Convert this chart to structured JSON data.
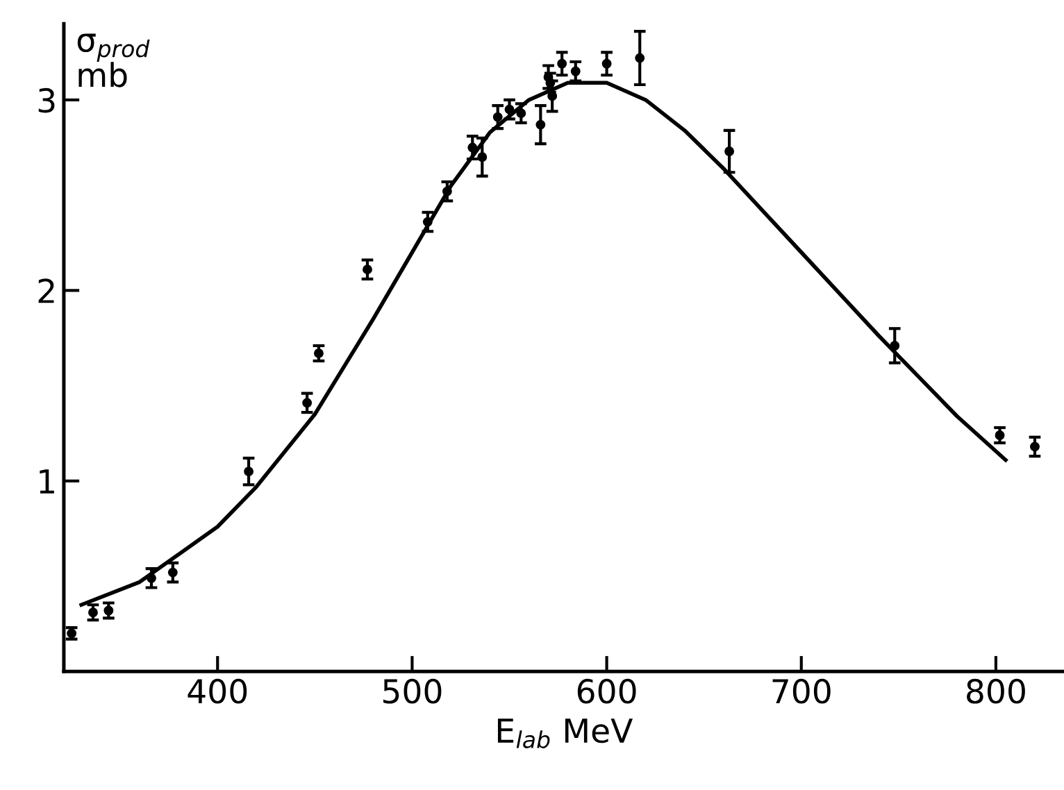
{
  "chart_data": {
    "type": "scatter",
    "xlabel": "E$_{lab}$ MeV",
    "ylabel": "σ$_{prod}$\nmb",
    "xlim": [
      321,
      835
    ],
    "ylim": [
      0,
      3.4
    ],
    "xticks": [
      400,
      500,
      600,
      700,
      800
    ],
    "yticks": [
      1,
      2,
      3
    ],
    "grid": false,
    "series": [
      {
        "marker": "circle",
        "color": "#000000",
        "x": [
          325,
          336,
          344,
          366,
          377,
          416,
          446,
          452,
          477,
          508,
          518,
          531,
          536,
          544,
          550,
          556,
          566,
          570,
          572,
          571,
          577,
          584,
          600,
          617,
          663,
          748,
          802,
          820
        ],
        "values": [
          0.2,
          0.31,
          0.32,
          0.49,
          0.52,
          1.05,
          1.41,
          1.67,
          2.11,
          2.36,
          2.52,
          2.75,
          2.7,
          2.91,
          2.95,
          2.93,
          2.87,
          3.12,
          3.02,
          3.09,
          3.19,
          3.15,
          3.19,
          3.22,
          2.73,
          1.71,
          1.24,
          1.18
        ],
        "errors": [
          0.03,
          0.04,
          0.04,
          0.05,
          0.05,
          0.07,
          0.05,
          0.04,
          0.05,
          0.05,
          0.05,
          0.06,
          0.1,
          0.06,
          0.05,
          0.05,
          0.1,
          0.06,
          0.08,
          0.05,
          0.06,
          0.05,
          0.06,
          0.14,
          0.11,
          0.09,
          0.04,
          0.05
        ]
      },
      {
        "type": "line",
        "marker": "none",
        "color": "#000000",
        "line_style": "solid",
        "x": [
          330,
          360,
          400,
          420,
          450,
          480,
          500,
          520,
          540,
          560,
          580,
          600,
          620,
          640,
          660,
          680,
          700,
          720,
          740,
          760,
          780,
          805
        ],
        "values": [
          0.35,
          0.47,
          0.76,
          0.97,
          1.35,
          1.85,
          2.2,
          2.55,
          2.83,
          3.0,
          3.09,
          3.09,
          3.0,
          2.84,
          2.64,
          2.42,
          2.2,
          1.98,
          1.76,
          1.55,
          1.34,
          1.11
        ]
      }
    ]
  }
}
